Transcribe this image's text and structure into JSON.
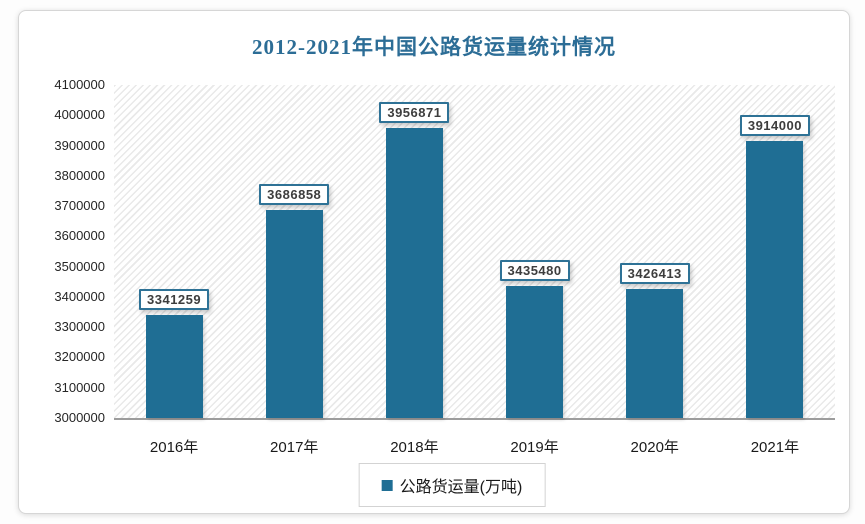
{
  "chart_data": {
    "type": "bar",
    "title": "2012-2021年中国公路货运量统计情况",
    "categories": [
      "2016年",
      "2017年",
      "2018年",
      "2019年",
      "2020年",
      "2021年"
    ],
    "series": [
      {
        "name": "公路货运量(万吨)",
        "values": [
          3341259,
          3686858,
          3956871,
          3435480,
          3426413,
          3914000
        ]
      }
    ],
    "ylim": [
      3000000,
      4100000
    ],
    "ytick_step": 100000,
    "yticks": [
      4100000,
      4000000,
      3900000,
      3800000,
      3700000,
      3600000,
      3500000,
      3400000,
      3300000,
      3200000,
      3100000,
      3000000
    ],
    "xlabel": "",
    "ylabel": "",
    "grid": false,
    "legend_position": "bottom",
    "data_labels_visible": true,
    "plot_background": "diagonal-hatch"
  },
  "colors": {
    "bar": "#1f6e94",
    "title": "#2c6d96",
    "data_label_border": "#2e7296",
    "axis_line": "#9d9d9d",
    "hatch_line": "#e9e9e9",
    "legend_border": "#d3d3d3",
    "text": "#262626"
  }
}
